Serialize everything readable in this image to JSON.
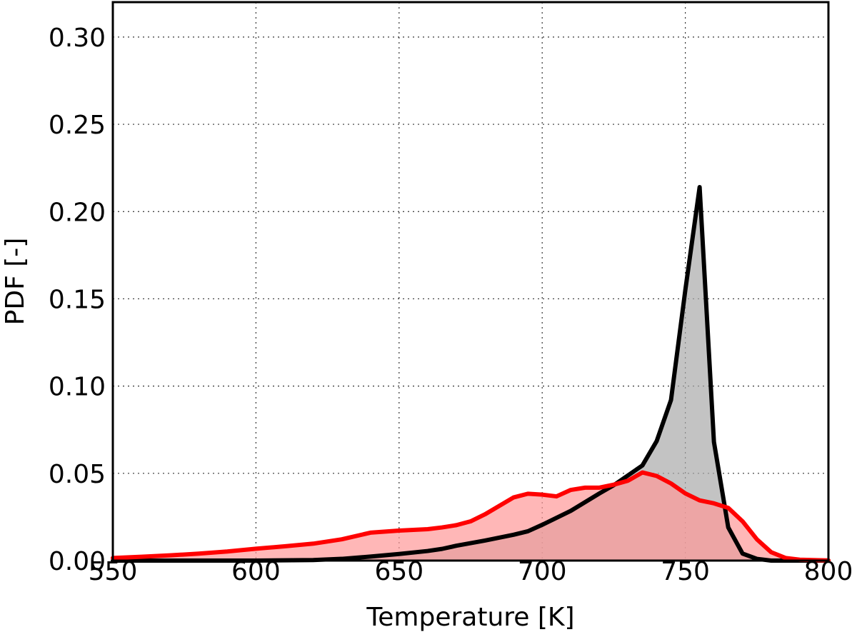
{
  "chart_data": {
    "type": "area",
    "title": "",
    "xlabel": "Temperature [K]",
    "ylabel": "PDF [-]",
    "xlim": [
      550,
      800
    ],
    "ylim": [
      0,
      0.32
    ],
    "xticks": [
      "550",
      "600",
      "650",
      "700",
      "750",
      "800"
    ],
    "yticks": [
      "0.00",
      "0.05",
      "0.10",
      "0.15",
      "0.20",
      "0.25",
      "0.30"
    ],
    "grid": true,
    "legend": "none",
    "series": [
      {
        "color": "#000000",
        "fill": "#a9a9a9",
        "points": [
          [
            550,
            0.0
          ],
          [
            600,
            0.0
          ],
          [
            620,
            0.0003
          ],
          [
            630,
            0.001
          ],
          [
            640,
            0.0023
          ],
          [
            650,
            0.0038
          ],
          [
            660,
            0.0055
          ],
          [
            665,
            0.0067
          ],
          [
            670,
            0.0085
          ],
          [
            680,
            0.0115
          ],
          [
            690,
            0.0148
          ],
          [
            695,
            0.0168
          ],
          [
            700,
            0.0205
          ],
          [
            710,
            0.0285
          ],
          [
            720,
            0.0385
          ],
          [
            725,
            0.0432
          ],
          [
            735,
            0.0545
          ],
          [
            740,
            0.0685
          ],
          [
            745,
            0.092
          ],
          [
            750,
            0.155
          ],
          [
            755,
            0.214
          ],
          [
            760,
            0.068
          ],
          [
            765,
            0.019
          ],
          [
            770,
            0.004
          ],
          [
            775,
            0.001
          ],
          [
            780,
            0.0
          ],
          [
            800,
            0.0
          ]
        ]
      },
      {
        "color": "#ff0000",
        "fill": "#ff9999",
        "points": [
          [
            550,
            0.0015
          ],
          [
            560,
            0.0022
          ],
          [
            570,
            0.003
          ],
          [
            580,
            0.004
          ],
          [
            590,
            0.0052
          ],
          [
            600,
            0.0068
          ],
          [
            610,
            0.0082
          ],
          [
            620,
            0.0097
          ],
          [
            630,
            0.0122
          ],
          [
            640,
            0.016
          ],
          [
            650,
            0.0172
          ],
          [
            660,
            0.018
          ],
          [
            665,
            0.019
          ],
          [
            670,
            0.0203
          ],
          [
            675,
            0.0225
          ],
          [
            680,
            0.0265
          ],
          [
            690,
            0.0362
          ],
          [
            695,
            0.0383
          ],
          [
            700,
            0.0378
          ],
          [
            705,
            0.0368
          ],
          [
            710,
            0.0405
          ],
          [
            715,
            0.0418
          ],
          [
            720,
            0.0418
          ],
          [
            725,
            0.0435
          ],
          [
            730,
            0.0458
          ],
          [
            735,
            0.0505
          ],
          [
            740,
            0.0485
          ],
          [
            745,
            0.0442
          ],
          [
            750,
            0.0385
          ],
          [
            755,
            0.0345
          ],
          [
            760,
            0.0328
          ],
          [
            765,
            0.0302
          ],
          [
            770,
            0.0225
          ],
          [
            775,
            0.0122
          ],
          [
            780,
            0.0048
          ],
          [
            785,
            0.0015
          ],
          [
            790,
            0.0005
          ],
          [
            800,
            0.0001
          ]
        ]
      }
    ]
  }
}
